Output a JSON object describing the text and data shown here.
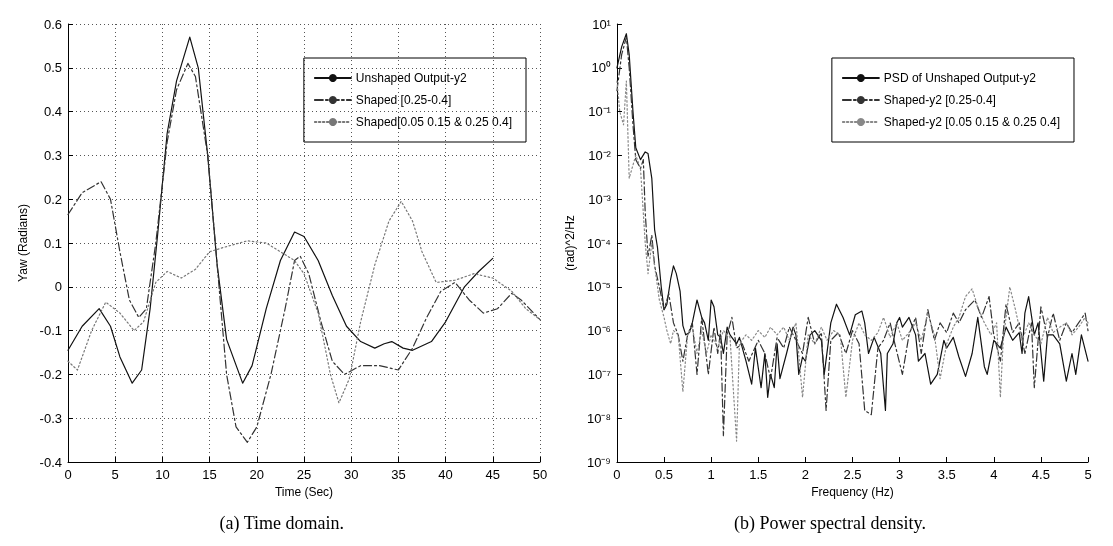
{
  "chart_data": [
    {
      "type": "line",
      "xlabel": "Time (Sec)",
      "ylabel": "Yaw (Radians)",
      "xlim": [
        0,
        50
      ],
      "xticks": [
        0,
        5,
        10,
        15,
        20,
        25,
        30,
        35,
        40,
        45,
        50
      ],
      "ylim": [
        -0.4,
        0.6
      ],
      "yticks": [
        -0.4,
        -0.3,
        -0.2,
        -0.1,
        0,
        0.1,
        0.2,
        0.3,
        0.4,
        0.5,
        0.6
      ],
      "grid": true,
      "legend": "top right",
      "marker": "none",
      "annotations": [
        "(a) Time domain."
      ],
      "series": [
        {
          "name": "Unshaped Output-y2",
          "color": "#111111",
          "line_style": "solid",
          "x": [
            0,
            1.5,
            3.3,
            4.5,
            5.5,
            6.8,
            7.8,
            8.7,
            9.5,
            10.5,
            11.5,
            12.9,
            13.8,
            14.8,
            15.8,
            16.8,
            18.5,
            19.5,
            21,
            22.5,
            24,
            25,
            26.5,
            28,
            29.5,
            31,
            32.5,
            33.5,
            34.3,
            35.5,
            36.5,
            38.5,
            40,
            42,
            43.5,
            45
          ],
          "values": [
            -0.145,
            -0.09,
            -0.05,
            -0.09,
            -0.16,
            -0.22,
            -0.19,
            -0.05,
            0.12,
            0.35,
            0.47,
            0.57,
            0.5,
            0.3,
            0.05,
            -0.12,
            -0.22,
            -0.18,
            -0.05,
            0.06,
            0.125,
            0.115,
            0.06,
            -0.02,
            -0.09,
            -0.125,
            -0.14,
            -0.13,
            -0.125,
            -0.14,
            -0.145,
            -0.125,
            -0.08,
            0,
            0.035,
            0.065
          ]
        },
        {
          "name": "Shaped [0.25-0.4]",
          "color": "#333333",
          "line_style": "dashed",
          "x": [
            0,
            1.5,
            3.5,
            4.5,
            5.5,
            6.5,
            7.5,
            8.3,
            9.3,
            10.5,
            11.5,
            12.7,
            13.5,
            14.8,
            15.8,
            16.8,
            17.8,
            19,
            20,
            21.5,
            23,
            24,
            24.6,
            25.5,
            26.8,
            28,
            29.3,
            31,
            33,
            35,
            36.5,
            38,
            39.5,
            41,
            42.5,
            44,
            45.5,
            47,
            48,
            50
          ],
          "values": [
            0.165,
            0.215,
            0.24,
            0.2,
            0.08,
            -0.03,
            -0.07,
            -0.05,
            0.1,
            0.33,
            0.45,
            0.51,
            0.48,
            0.3,
            0.05,
            -0.2,
            -0.32,
            -0.355,
            -0.32,
            -0.2,
            -0.05,
            0.06,
            0.07,
            0.03,
            -0.08,
            -0.17,
            -0.2,
            -0.18,
            -0.18,
            -0.19,
            -0.14,
            -0.07,
            -0.01,
            0.01,
            -0.03,
            -0.06,
            -0.05,
            -0.015,
            -0.03,
            -0.075
          ]
        },
        {
          "name": "Shaped[0.05 0.15 & 0.25 0.4]",
          "color": "#777777",
          "line_style": "dotted",
          "x": [
            0,
            1,
            2.5,
            4,
            5.5,
            7,
            8,
            9.3,
            10.5,
            12,
            13.5,
            15,
            16.5,
            19,
            21,
            22.5,
            24,
            25,
            26.5,
            27.8,
            28.7,
            29.8,
            31,
            32.5,
            34,
            35.3,
            36.5,
            37.5,
            39,
            41,
            43,
            45,
            47,
            48.5,
            50
          ],
          "values": [
            -0.17,
            -0.19,
            -0.1,
            -0.035,
            -0.06,
            -0.1,
            -0.08,
            0.01,
            0.035,
            0.02,
            0.04,
            0.08,
            0.09,
            0.105,
            0.1,
            0.08,
            0.06,
            0.03,
            -0.06,
            -0.2,
            -0.265,
            -0.21,
            -0.08,
            0.05,
            0.15,
            0.195,
            0.15,
            0.08,
            0.01,
            0.015,
            0.03,
            0.02,
            -0.01,
            -0.05,
            -0.075
          ]
        }
      ]
    },
    {
      "type": "line",
      "xlabel": "Frequency (Hz)",
      "ylabel": "(rad)^2/Hz",
      "log": "y",
      "xlim": [
        0,
        5
      ],
      "xticks": [
        0,
        0.5,
        1,
        1.5,
        2,
        2.5,
        3,
        3.5,
        4,
        4.5,
        5
      ],
      "ylim": [
        1e-09,
        10
      ],
      "yticks": [
        {
          "value": 1e-09,
          "label": "10⁻⁹"
        },
        {
          "value": 1e-08,
          "label": "10⁻⁸"
        },
        {
          "value": 1e-07,
          "label": "10⁻⁷"
        },
        {
          "value": 1e-06,
          "label": "10⁻⁶"
        },
        {
          "value": 1e-05,
          "label": "10⁻⁵"
        },
        {
          "value": 0.0001,
          "label": "10⁻⁴"
        },
        {
          "value": 0.001,
          "label": "10⁻³"
        },
        {
          "value": 0.01,
          "label": "10⁻²"
        },
        {
          "value": 0.1,
          "label": "10⁻¹"
        },
        {
          "value": 1,
          "label": "10⁰"
        },
        {
          "value": 10,
          "label": "10¹"
        }
      ],
      "grid": false,
      "legend": "top right",
      "marker": "none",
      "annotations": [
        "(b) Power spectral density."
      ],
      "series": [
        {
          "name": "PSD of Unshaped Output-y2",
          "color": "#111111",
          "line_style": "solid",
          "x": [
            0,
            0.05,
            0.1,
            0.13,
            0.17,
            0.2,
            0.25,
            0.3,
            0.33,
            0.37,
            0.4,
            0.43,
            0.47,
            0.5,
            0.53,
            0.57,
            0.6,
            0.63,
            0.67,
            0.7,
            0.73,
            0.77,
            0.8,
            0.85,
            0.9,
            0.93,
            0.97,
            1.0,
            1.03,
            1.07,
            1.1,
            1.13,
            1.17,
            1.2,
            1.27,
            1.3,
            1.37,
            1.43,
            1.47,
            1.53,
            1.57,
            1.6,
            1.63,
            1.67,
            1.7,
            1.73,
            1.8,
            1.87,
            1.9,
            1.93,
            1.97,
            2.0,
            2.05,
            2.1,
            2.17,
            2.2,
            2.27,
            2.33,
            2.4,
            2.47,
            2.53,
            2.6,
            2.63,
            2.67,
            2.73,
            2.8,
            2.85,
            2.87,
            2.93,
            2.97,
            3.0,
            3.03,
            3.1,
            3.17,
            3.2,
            3.27,
            3.33,
            3.4,
            3.47,
            3.5,
            3.57,
            3.63,
            3.7,
            3.77,
            3.83,
            3.9,
            3.93,
            4.0,
            4.07,
            4.13,
            4.2,
            4.27,
            4.3,
            4.33,
            4.37,
            4.43,
            4.47,
            4.53,
            4.57,
            4.63,
            4.7,
            4.77,
            4.83,
            4.87,
            4.93,
            5.0
          ],
          "values": [
            1,
            3,
            6,
            2,
            0.1,
            0.015,
            0.008,
            0.012,
            0.011,
            0.003,
            0.0002,
            8e-05,
            1e-05,
            3e-06,
            4e-06,
            1.5e-05,
            3e-05,
            2e-05,
            8e-06,
            1.3e-06,
            8e-07,
            9e-07,
            1.5e-06,
            5e-06,
            2e-06,
            1.5e-06,
            6e-07,
            5e-06,
            3.5e-06,
            8e-07,
            7e-07,
            3e-07,
            1.2e-06,
            8e-07,
            5e-07,
            7e-07,
            2e-07,
            6e-08,
            4e-07,
            5e-08,
            3e-07,
            3e-08,
            1e-07,
            5e-08,
            5e-07,
            8e-08,
            3e-07,
            1.2e-06,
            8e-07,
            1e-07,
            2.5e-07,
            2e-07,
            8e-07,
            1e-06,
            6e-07,
            1e-07,
            1.5e-06,
            4e-06,
            2e-06,
            8e-07,
            2.3e-06,
            2.8e-06,
            1.5e-06,
            3e-07,
            7e-07,
            3e-07,
            1.5e-08,
            3e-07,
            5e-07,
            1.5e-06,
            2e-06,
            1.2e-06,
            2e-06,
            8e-07,
            2e-07,
            3e-07,
            6e-08,
            1e-07,
            6e-07,
            4e-07,
            7e-07,
            2.5e-07,
            9e-08,
            3e-07,
            2e-06,
            1.5e-07,
            1e-07,
            6e-07,
            4e-07,
            1.2e-06,
            6e-07,
            9e-07,
            3e-07,
            2.5e-06,
            6e-06,
            8e-07,
            1.5e-06,
            7e-08,
            8e-07,
            8e-07,
            5e-07,
            7e-08,
            3e-07,
            1e-07,
            8e-07,
            2e-07
          ]
        },
        {
          "name": "Shaped-y2 [0.25-0.4]",
          "color": "#333333",
          "line_style": "dashed",
          "x": [
            0,
            0.05,
            0.1,
            0.13,
            0.17,
            0.2,
            0.25,
            0.28,
            0.3,
            0.33,
            0.37,
            0.4,
            0.45,
            0.5,
            0.55,
            0.6,
            0.65,
            0.7,
            0.75,
            0.8,
            0.85,
            0.9,
            0.97,
            1.03,
            1.07,
            1.1,
            1.13,
            1.17,
            1.22,
            1.27,
            1.33,
            1.4,
            1.5,
            1.57,
            1.63,
            1.7,
            1.77,
            1.83,
            1.9,
            1.97,
            2.03,
            2.1,
            2.17,
            2.22,
            2.27,
            2.35,
            2.43,
            2.5,
            2.57,
            2.63,
            2.7,
            2.77,
            2.83,
            2.9,
            2.95,
            3.03,
            3.1,
            3.17,
            3.23,
            3.3,
            3.37,
            3.43,
            3.5,
            3.57,
            3.63,
            3.7,
            3.8,
            3.87,
            3.95,
            4.0,
            4.07,
            4.13,
            4.2,
            4.27,
            4.33,
            4.4,
            4.43,
            4.5,
            4.57,
            4.63,
            4.7,
            4.77,
            4.83,
            4.9,
            4.97,
            5.0
          ],
          "values": [
            0.3,
            2,
            5,
            1,
            0.05,
            0.008,
            0.005,
            0.008,
            0.0005,
            5e-05,
            0.00015,
            3e-05,
            1e-05,
            3e-06,
            7e-06,
            1.5e-06,
            8e-07,
            2e-07,
            8e-07,
            1.5e-06,
            1e-07,
            2e-06,
            1e-07,
            1.2e-06,
            3e-07,
            1e-06,
            4e-09,
            8e-07,
            2e-06,
            4e-07,
            5e-07,
            2e-07,
            6e-07,
            3e-07,
            8e-08,
            7e-07,
            4e-07,
            1.2e-06,
            6e-07,
            3e-07,
            2e-06,
            5e-07,
            9e-07,
            1.5e-08,
            6e-07,
            9e-07,
            3e-07,
            1e-06,
            5e-07,
            1.5e-08,
            1.2e-08,
            4e-07,
            6e-07,
            1.5e-06,
            5e-07,
            1e-07,
            8e-07,
            2e-06,
            3e-07,
            3e-06,
            6e-07,
            1.5e-06,
            9e-07,
            2.5e-06,
            1.5e-06,
            3e-06,
            5e-06,
            2e-06,
            6e-06,
            8e-07,
            2e-07,
            4e-06,
            9e-07,
            1.5e-06,
            3e-07,
            1.5e-06,
            5e-08,
            3.5e-06,
            7e-07,
            2.5e-06,
            6e-07,
            1.5e-06,
            9e-07,
            1.5e-06,
            2.5e-06,
            1e-06
          ]
        },
        {
          "name": "Shaped-y2 [0.05 0.15 & 0.25 0.4]",
          "color": "#888888",
          "line_style": "dotted",
          "x": [
            0,
            0.03,
            0.07,
            0.1,
            0.13,
            0.17,
            0.2,
            0.25,
            0.3,
            0.33,
            0.37,
            0.4,
            0.45,
            0.5,
            0.53,
            0.57,
            0.6,
            0.65,
            0.7,
            0.75,
            0.8,
            0.85,
            0.9,
            0.95,
            1.0,
            1.07,
            1.13,
            1.2,
            1.27,
            1.3,
            1.37,
            1.43,
            1.5,
            1.57,
            1.63,
            1.7,
            1.77,
            1.83,
            1.9,
            1.97,
            2.03,
            2.1,
            2.17,
            2.23,
            2.3,
            2.37,
            2.43,
            2.5,
            2.57,
            2.63,
            2.7,
            2.77,
            2.83,
            2.9,
            2.97,
            3.03,
            3.1,
            3.17,
            3.23,
            3.3,
            3.37,
            3.43,
            3.5,
            3.57,
            3.63,
            3.7,
            3.77,
            3.83,
            3.9,
            3.97,
            4.03,
            4.07,
            4.1,
            4.17,
            4.23,
            4.3,
            4.37,
            4.43,
            4.5,
            4.57,
            4.63,
            4.7,
            4.77,
            4.83,
            4.9,
            4.97,
            5.0
          ],
          "values": [
            0.5,
            0.1,
            0.05,
            0.5,
            0.003,
            0.006,
            0.01,
            0.005,
            0.0001,
            2e-05,
            0.0001,
            3e-05,
            5e-06,
            2e-06,
            1e-06,
            5e-07,
            1e-06,
            8e-07,
            4e-08,
            8e-07,
            1.2e-06,
            3e-07,
            1e-06,
            3e-07,
            8e-07,
            4e-07,
            1e-06,
            7e-07,
            3e-09,
            5e-07,
            8e-07,
            6e-07,
            1e-06,
            7e-07,
            1.2e-06,
            8e-07,
            1.2e-06,
            6e-07,
            1.5e-06,
            3e-08,
            8e-07,
            5e-07,
            1.2e-06,
            6e-07,
            1e-06,
            8e-07,
            3e-08,
            6e-07,
            1.5e-06,
            8e-07,
            6e-07,
            9e-07,
            2e-06,
            7e-07,
            1.5e-06,
            6e-07,
            9e-07,
            1.5e-06,
            6e-07,
            2.5e-06,
            8e-07,
            8e-08,
            5e-07,
            1.2e-06,
            2e-06,
            6e-06,
            9e-06,
            3.5e-06,
            1.5e-06,
            8e-07,
            1.5e-06,
            3e-08,
            6e-07,
            1e-05,
            3e-06,
            6e-07,
            1.5e-06,
            8e-07,
            5e-07,
            2e-06,
            9e-07,
            1.2e-06,
            1.5e-06,
            8e-07,
            1.2e-06,
            2e-06,
            1.5e-06
          ]
        }
      ]
    }
  ]
}
